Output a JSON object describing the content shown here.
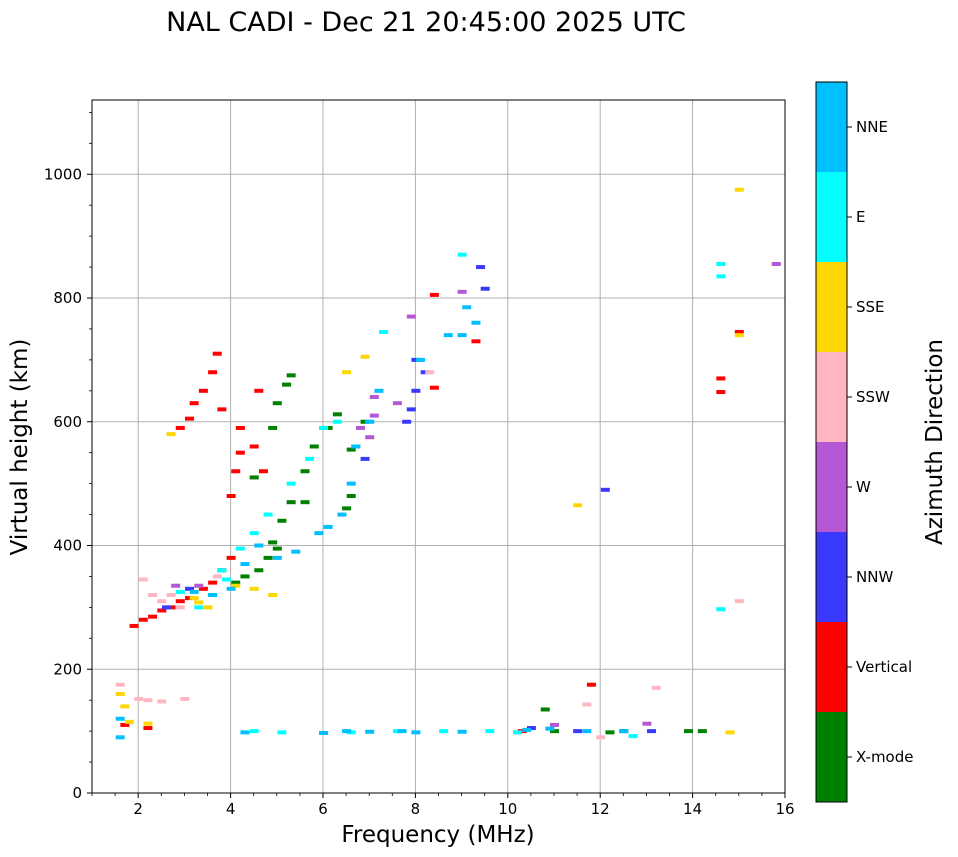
{
  "chart_data": {
    "type": "scatter",
    "title": "NAL CADI - Dec 21 20:45:00 2025 UTC",
    "xlabel": "Frequency (MHz)",
    "ylabel": "Virtual height (km)",
    "xlim": [
      1,
      16
    ],
    "ylim": [
      0,
      1120
    ],
    "xticks": [
      2,
      4,
      6,
      8,
      10,
      12,
      14,
      16
    ],
    "yticks": [
      0,
      200,
      400,
      600,
      800,
      1000
    ],
    "grid": true,
    "colorbar": {
      "label": "Azimuth Direction",
      "categories": [
        {
          "name": "X-mode",
          "color": "#008000"
        },
        {
          "name": "Vertical",
          "color": "#ff0000"
        },
        {
          "name": "NNW",
          "color": "#3a3aff"
        },
        {
          "name": "W",
          "color": "#b658d6"
        },
        {
          "name": "SSW",
          "color": "#ffb6c1"
        },
        {
          "name": "SSE",
          "color": "#ffd700"
        },
        {
          "name": "E",
          "color": "#00ffff"
        },
        {
          "name": "NNE",
          "color": "#00bfff"
        }
      ]
    },
    "series": [
      {
        "name": "X-mode",
        "points": [
          [
            4.1,
            340
          ],
          [
            4.3,
            350
          ],
          [
            4.6,
            360
          ],
          [
            4.8,
            380
          ],
          [
            5.0,
            395
          ],
          [
            5.1,
            440
          ],
          [
            5.3,
            470
          ],
          [
            5.6,
            520
          ],
          [
            5.8,
            560
          ],
          [
            6.1,
            590
          ],
          [
            6.3,
            612
          ],
          [
            6.6,
            480
          ],
          [
            6.5,
            460
          ],
          [
            5.0,
            630
          ],
          [
            5.2,
            660
          ],
          [
            5.3,
            675
          ],
          [
            4.9,
            590
          ],
          [
            4.5,
            510
          ],
          [
            6.9,
            600
          ],
          [
            10.8,
            135
          ],
          [
            12.5,
            100
          ],
          [
            13.9,
            100
          ],
          [
            14.2,
            100
          ],
          [
            11.0,
            100
          ],
          [
            12.2,
            98
          ],
          [
            6.6,
            555
          ],
          [
            4.9,
            405
          ],
          [
            5.6,
            470
          ]
        ]
      },
      {
        "name": "Vertical",
        "points": [
          [
            1.9,
            270
          ],
          [
            2.1,
            280
          ],
          [
            2.3,
            285
          ],
          [
            2.5,
            295
          ],
          [
            2.7,
            300
          ],
          [
            2.9,
            310
          ],
          [
            3.1,
            315
          ],
          [
            3.4,
            330
          ],
          [
            3.6,
            340
          ],
          [
            3.8,
            360
          ],
          [
            4.0,
            380
          ],
          [
            4.0,
            480
          ],
          [
            4.1,
            520
          ],
          [
            4.2,
            550
          ],
          [
            4.2,
            590
          ],
          [
            4.5,
            560
          ],
          [
            4.7,
            520
          ],
          [
            3.7,
            710
          ],
          [
            3.6,
            680
          ],
          [
            3.4,
            650
          ],
          [
            3.2,
            630
          ],
          [
            3.1,
            605
          ],
          [
            2.9,
            590
          ],
          [
            8.4,
            805
          ],
          [
            8.4,
            655
          ],
          [
            14.6,
            670
          ],
          [
            14.6,
            648
          ],
          [
            15.0,
            745
          ],
          [
            11.8,
            175
          ],
          [
            2.2,
            105
          ],
          [
            9.3,
            730
          ],
          [
            3.8,
            620
          ],
          [
            4.6,
            650
          ],
          [
            1.7,
            110
          ],
          [
            10.3,
            100
          ]
        ]
      },
      {
        "name": "NNW",
        "points": [
          [
            7.8,
            600
          ],
          [
            7.9,
            620
          ],
          [
            8.0,
            650
          ],
          [
            8.0,
            700
          ],
          [
            8.2,
            680
          ],
          [
            9.4,
            850
          ],
          [
            9.5,
            815
          ],
          [
            12.1,
            490
          ],
          [
            6.9,
            540
          ],
          [
            2.6,
            300
          ],
          [
            3.1,
            330
          ],
          [
            10.5,
            105
          ],
          [
            11.5,
            100
          ],
          [
            13.1,
            100
          ]
        ]
      },
      {
        "name": "W",
        "points": [
          [
            6.7,
            560
          ],
          [
            6.8,
            590
          ],
          [
            7.0,
            575
          ],
          [
            7.1,
            610
          ],
          [
            7.6,
            630
          ],
          [
            7.9,
            770
          ],
          [
            9.0,
            810
          ],
          [
            15.8,
            855
          ],
          [
            2.8,
            335
          ],
          [
            3.3,
            335
          ],
          [
            13.0,
            112
          ],
          [
            11.0,
            110
          ],
          [
            7.1,
            640
          ]
        ]
      },
      {
        "name": "SSW",
        "points": [
          [
            2.1,
            345
          ],
          [
            2.3,
            320
          ],
          [
            2.5,
            310
          ],
          [
            2.7,
            320
          ],
          [
            2.9,
            300
          ],
          [
            2.0,
            152
          ],
          [
            2.2,
            150
          ],
          [
            2.5,
            148
          ],
          [
            3.0,
            152
          ],
          [
            1.6,
            175
          ],
          [
            8.3,
            680
          ],
          [
            11.7,
            143
          ],
          [
            13.2,
            170
          ],
          [
            15.0,
            310
          ],
          [
            12.0,
            90
          ],
          [
            3.7,
            350
          ]
        ]
      },
      {
        "name": "SSE",
        "points": [
          [
            1.6,
            160
          ],
          [
            1.7,
            140
          ],
          [
            1.8,
            115
          ],
          [
            2.2,
            112
          ],
          [
            3.2,
            315
          ],
          [
            3.5,
            300
          ],
          [
            4.1,
            335
          ],
          [
            4.5,
            330
          ],
          [
            4.9,
            320
          ],
          [
            6.9,
            705
          ],
          [
            11.5,
            465
          ],
          [
            15.0,
            975
          ],
          [
            15.0,
            740
          ],
          [
            14.8,
            98
          ],
          [
            2.7,
            580
          ],
          [
            3.3,
            308
          ],
          [
            6.5,
            680
          ]
        ]
      },
      {
        "name": "E",
        "points": [
          [
            2.9,
            325
          ],
          [
            3.3,
            300
          ],
          [
            3.6,
            320
          ],
          [
            3.9,
            345
          ],
          [
            4.2,
            395
          ],
          [
            4.5,
            420
          ],
          [
            4.8,
            450
          ],
          [
            5.3,
            500
          ],
          [
            5.7,
            540
          ],
          [
            6.0,
            590
          ],
          [
            6.3,
            600
          ],
          [
            7.3,
            745
          ],
          [
            9.0,
            870
          ],
          [
            14.6,
            855
          ],
          [
            14.6,
            835
          ],
          [
            14.6,
            297
          ],
          [
            4.5,
            100
          ],
          [
            5.1,
            98
          ],
          [
            6.6,
            98
          ],
          [
            7.6,
            100
          ],
          [
            8.6,
            100
          ],
          [
            9.6,
            100
          ],
          [
            10.2,
            98
          ],
          [
            12.7,
            92
          ],
          [
            3.8,
            360
          ]
        ]
      },
      {
        "name": "NNE",
        "points": [
          [
            3.2,
            325
          ],
          [
            3.6,
            320
          ],
          [
            4.0,
            330
          ],
          [
            4.3,
            370
          ],
          [
            4.6,
            400
          ],
          [
            5.0,
            380
          ],
          [
            5.4,
            390
          ],
          [
            5.9,
            420
          ],
          [
            6.1,
            430
          ],
          [
            6.4,
            450
          ],
          [
            6.6,
            500
          ],
          [
            6.7,
            560
          ],
          [
            7.0,
            600
          ],
          [
            7.2,
            650
          ],
          [
            8.1,
            700
          ],
          [
            8.7,
            740
          ],
          [
            9.1,
            785
          ],
          [
            9.3,
            760
          ],
          [
            9.0,
            740
          ],
          [
            6.5,
            100
          ],
          [
            7.0,
            99
          ],
          [
            8.0,
            98
          ],
          [
            9.0,
            99
          ],
          [
            10.4,
            102
          ],
          [
            10.9,
            104
          ],
          [
            11.7,
            100
          ],
          [
            12.5,
            100
          ],
          [
            1.6,
            90
          ],
          [
            1.6,
            120
          ],
          [
            7.7,
            100
          ],
          [
            4.3,
            98
          ],
          [
            6.0,
            97
          ]
        ]
      }
    ]
  }
}
